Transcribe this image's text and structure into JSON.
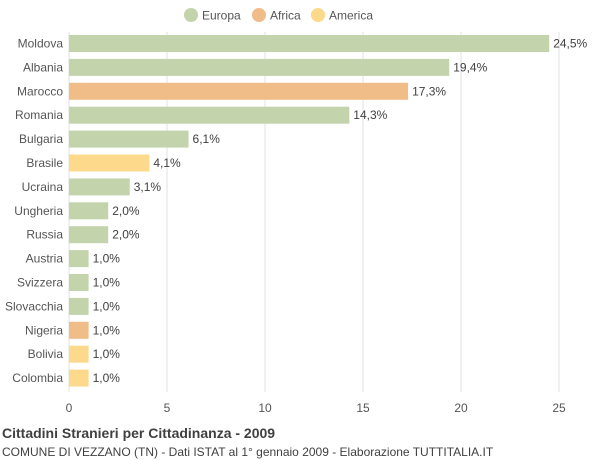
{
  "chart_data": {
    "type": "bar",
    "orientation": "horizontal",
    "title": "Cittadini Stranieri per Cittadinanza - 2009",
    "subtitle": "COMUNE DI VEZZANO (TN) - Dati ISTAT al 1° gennaio 2009 - Elaborazione TUTTITALIA.IT",
    "legend": {
      "placement": "top-center",
      "items": [
        {
          "name": "Europa",
          "color": "#c3d4ac"
        },
        {
          "name": "Africa",
          "color": "#f0bc88"
        },
        {
          "name": "America",
          "color": "#fdd98c"
        }
      ]
    },
    "xlim": [
      0,
      25
    ],
    "xticks": [
      "0",
      "5",
      "10",
      "15",
      "20",
      "25"
    ],
    "grid": true,
    "categories": [
      "Moldova",
      "Albania",
      "Marocco",
      "Romania",
      "Bulgaria",
      "Brasile",
      "Ucraina",
      "Ungheria",
      "Russia",
      "Austria",
      "Svizzera",
      "Slovacchia",
      "Nigeria",
      "Bolivia",
      "Colombia"
    ],
    "values": [
      24.5,
      19.4,
      17.3,
      14.3,
      6.1,
      4.1,
      3.1,
      2.0,
      2.0,
      1.0,
      1.0,
      1.0,
      1.0,
      1.0,
      1.0
    ],
    "value_labels": [
      "24,5%",
      "19,4%",
      "17,3%",
      "14,3%",
      "6,1%",
      "4,1%",
      "3,1%",
      "2,0%",
      "2,0%",
      "1,0%",
      "1,0%",
      "1,0%",
      "1,0%",
      "1,0%",
      "1,0%"
    ],
    "groups": [
      "Europa",
      "Europa",
      "Africa",
      "Europa",
      "Europa",
      "America",
      "Europa",
      "Europa",
      "Europa",
      "Europa",
      "Europa",
      "Europa",
      "Africa",
      "America",
      "America"
    ]
  }
}
